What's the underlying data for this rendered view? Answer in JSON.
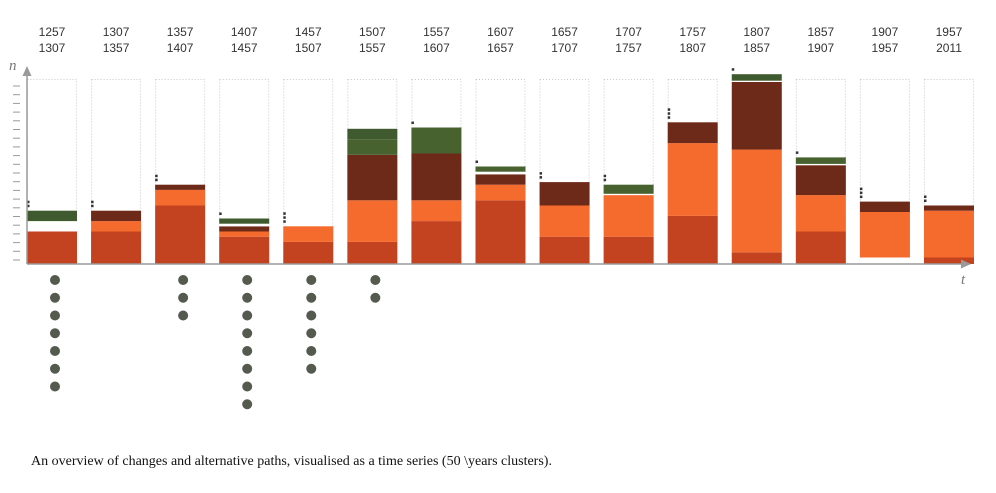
{
  "chart_data": {
    "type": "bar",
    "stacked": true,
    "y_axis_label": "n",
    "x_axis_label": "t",
    "ylim": [
      0,
      70
    ],
    "grid": false,
    "legend": "none",
    "colors": {
      "dark_green": "#3f5a2e",
      "light_green": "#48622f",
      "maroon": "#6e2a19",
      "orange": "#f56a2d",
      "rust": "#c3421f",
      "column_outline": "#c8c8c8",
      "axis": "#9a9a9a",
      "dot": "#545a4e"
    },
    "categories": [
      [
        "1257",
        "1307"
      ],
      [
        "1307",
        "1357"
      ],
      [
        "1357",
        "1407"
      ],
      [
        "1407",
        "1457"
      ],
      [
        "1457",
        "1507"
      ],
      [
        "1507",
        "1557"
      ],
      [
        "1557",
        "1607"
      ],
      [
        "1607",
        "1657"
      ],
      [
        "1657",
        "1707"
      ],
      [
        "1707",
        "1757"
      ],
      [
        "1757",
        "1807"
      ],
      [
        "1807",
        "1857"
      ],
      [
        "1857",
        "1907"
      ],
      [
        "1907",
        "1957"
      ],
      [
        "1957",
        "2011"
      ]
    ],
    "stacks": [
      [
        {
          "c": "rust",
          "v": 12.5
        },
        {
          "c": "white",
          "v": 4
        },
        {
          "c": "dark_green",
          "v": 4
        }
      ],
      [
        {
          "c": "rust",
          "v": 12.5
        },
        {
          "c": "orange",
          "v": 4
        },
        {
          "c": "maroon",
          "v": 4
        }
      ],
      [
        {
          "c": "rust",
          "v": 22.5
        },
        {
          "c": "orange",
          "v": 6
        },
        {
          "c": "maroon",
          "v": 2
        }
      ],
      [
        {
          "c": "rust",
          "v": 10.5
        },
        {
          "c": "orange",
          "v": 2
        },
        {
          "c": "maroon",
          "v": 2
        },
        {
          "c": "white",
          "v": 1
        },
        {
          "c": "dark_green",
          "v": 2
        }
      ],
      [
        {
          "c": "rust",
          "v": 8.5
        },
        {
          "c": "orange",
          "v": 6
        }
      ],
      [
        {
          "c": "rust",
          "v": 8.5
        },
        {
          "c": "orange",
          "v": 16
        },
        {
          "c": "maroon",
          "v": 17.5
        },
        {
          "c": "light_green",
          "v": 6
        },
        {
          "c": "dark_green",
          "v": 4
        }
      ],
      [
        {
          "c": "rust",
          "v": 16.5
        },
        {
          "c": "orange",
          "v": 8
        },
        {
          "c": "maroon",
          "v": 18
        },
        {
          "c": "light_green",
          "v": 10
        }
      ],
      [
        {
          "c": "rust",
          "v": 24.5
        },
        {
          "c": "orange",
          "v": 6
        },
        {
          "c": "maroon",
          "v": 4
        },
        {
          "c": "white",
          "v": 1
        },
        {
          "c": "light_green",
          "v": 2
        }
      ],
      [
        {
          "c": "rust",
          "v": 10.5
        },
        {
          "c": "orange",
          "v": 12
        },
        {
          "c": "maroon",
          "v": 9
        }
      ],
      [
        {
          "c": "rust",
          "v": 10.5
        },
        {
          "c": "orange",
          "v": 16
        },
        {
          "c": "white",
          "v": 0.5
        },
        {
          "c": "light_green",
          "v": 3.5
        }
      ],
      [
        {
          "c": "rust",
          "v": 18.5
        },
        {
          "c": "orange",
          "v": 28
        },
        {
          "c": "maroon",
          "v": 8
        }
      ],
      [
        {
          "c": "rust",
          "v": 4.5
        },
        {
          "c": "orange",
          "v": 39.5
        },
        {
          "c": "maroon",
          "v": 26
        },
        {
          "c": "white",
          "v": 0.5
        },
        {
          "c": "dark_green",
          "v": 2.5
        }
      ],
      [
        {
          "c": "rust",
          "v": 12.5
        },
        {
          "c": "orange",
          "v": 14
        },
        {
          "c": "maroon",
          "v": 11.5
        },
        {
          "c": "white",
          "v": 0.5
        },
        {
          "c": "light_green",
          "v": 2.5
        }
      ],
      [
        {
          "c": "white",
          "v": 2.5
        },
        {
          "c": "orange",
          "v": 17.5
        },
        {
          "c": "maroon",
          "v": 4
        }
      ],
      [
        {
          "c": "rust",
          "v": 2.5
        },
        {
          "c": "orange",
          "v": 18
        },
        {
          "c": "maroon",
          "v": 2
        }
      ]
    ],
    "small_markers": [
      2,
      2,
      2,
      1,
      3,
      0,
      1,
      1,
      2,
      2,
      3,
      1,
      1,
      3,
      2
    ],
    "alternative_path_dots": [
      7,
      0,
      3,
      8,
      6,
      2,
      0,
      0,
      0,
      0,
      0,
      0,
      0,
      0,
      0
    ],
    "caption": "An overview of changes and alternative paths, visualised as a time series (50 \\years clusters)."
  }
}
